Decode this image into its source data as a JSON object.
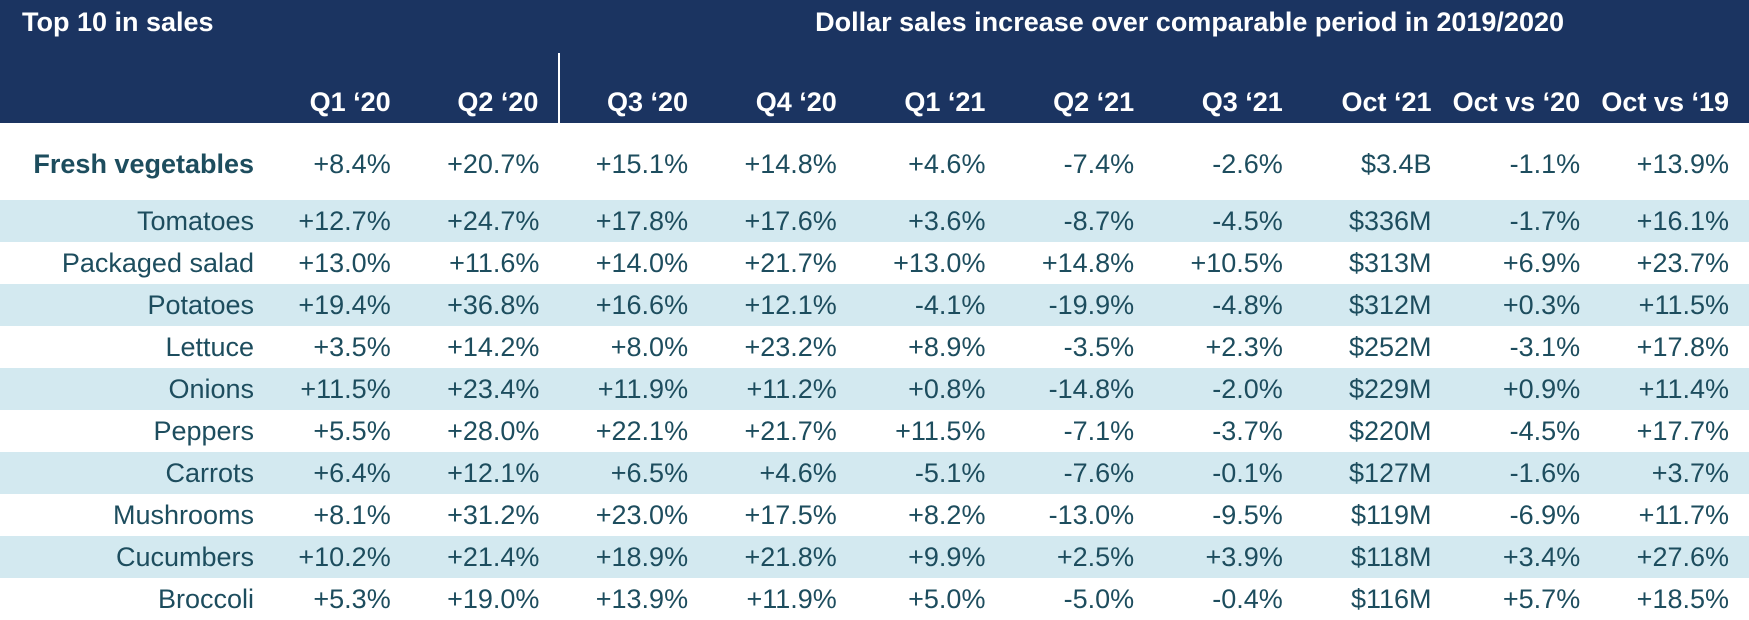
{
  "chart_data": {
    "type": "table",
    "corner_label": "Top 10 in sales",
    "group_header": "Dollar sales increase over comparable period in 2019/2020",
    "columns": [
      "Q1 ‘20",
      "Q2 ‘20",
      "Q3 ‘20",
      "Q4 ‘20",
      "Q1 ‘21",
      "Q2 ‘21",
      "Q3 ‘21",
      "Oct ‘21",
      "Oct vs ‘20",
      "Oct vs ‘19"
    ],
    "total_row": {
      "label": "Fresh vegetables",
      "values": [
        "+8.4%",
        "+20.7%",
        "+15.1%",
        "+14.8%",
        "+4.6%",
        "-7.4%",
        "-2.6%",
        "$3.4B",
        "-1.1%",
        "+13.9%"
      ]
    },
    "rows": [
      {
        "label": "Tomatoes",
        "values": [
          "+12.7%",
          "+24.7%",
          "+17.8%",
          "+17.6%",
          "+3.6%",
          "-8.7%",
          "-4.5%",
          "$336M",
          "-1.7%",
          "+16.1%"
        ]
      },
      {
        "label": "Packaged salad",
        "values": [
          "+13.0%",
          "+11.6%",
          "+14.0%",
          "+21.7%",
          "+13.0%",
          "+14.8%",
          "+10.5%",
          "$313M",
          "+6.9%",
          "+23.7%"
        ]
      },
      {
        "label": "Potatoes",
        "values": [
          "+19.4%",
          "+36.8%",
          "+16.6%",
          "+12.1%",
          "-4.1%",
          "-19.9%",
          "-4.8%",
          "$312M",
          "+0.3%",
          "+11.5%"
        ]
      },
      {
        "label": "Lettuce",
        "values": [
          "+3.5%",
          "+14.2%",
          "+8.0%",
          "+23.2%",
          "+8.9%",
          "-3.5%",
          "+2.3%",
          "$252M",
          "-3.1%",
          "+17.8%"
        ]
      },
      {
        "label": "Onions",
        "values": [
          "+11.5%",
          "+23.4%",
          "+11.9%",
          "+11.2%",
          "+0.8%",
          "-14.8%",
          "-2.0%",
          "$229M",
          "+0.9%",
          "+11.4%"
        ]
      },
      {
        "label": "Peppers",
        "values": [
          "+5.5%",
          "+28.0%",
          "+22.1%",
          "+21.7%",
          "+11.5%",
          "-7.1%",
          "-3.7%",
          "$220M",
          "-4.5%",
          "+17.7%"
        ]
      },
      {
        "label": "Carrots",
        "values": [
          "+6.4%",
          "+12.1%",
          "+6.5%",
          "+4.6%",
          "-5.1%",
          "-7.6%",
          "-0.1%",
          "$127M",
          "-1.6%",
          "+3.7%"
        ]
      },
      {
        "label": "Mushrooms",
        "values": [
          "+8.1%",
          "+31.2%",
          "+23.0%",
          "+17.5%",
          "+8.2%",
          "-13.0%",
          "-9.5%",
          "$119M",
          "-6.9%",
          "+11.7%"
        ]
      },
      {
        "label": "Cucumbers",
        "values": [
          "+10.2%",
          "+21.4%",
          "+18.9%",
          "+21.8%",
          "+9.9%",
          "+2.5%",
          "+3.9%",
          "$118M",
          "+3.4%",
          "+27.6%"
        ]
      },
      {
        "label": "Broccoli",
        "values": [
          "+5.3%",
          "+19.0%",
          "+13.9%",
          "+11.9%",
          "+5.0%",
          "-5.0%",
          "-0.4%",
          "$116M",
          "+5.7%",
          "+18.5%"
        ]
      }
    ],
    "colors": {
      "header_bg": "#1b3461",
      "header_text": "#ffffff",
      "body_text": "#1d4d5e",
      "band_bg": "#d3e9f0"
    }
  }
}
